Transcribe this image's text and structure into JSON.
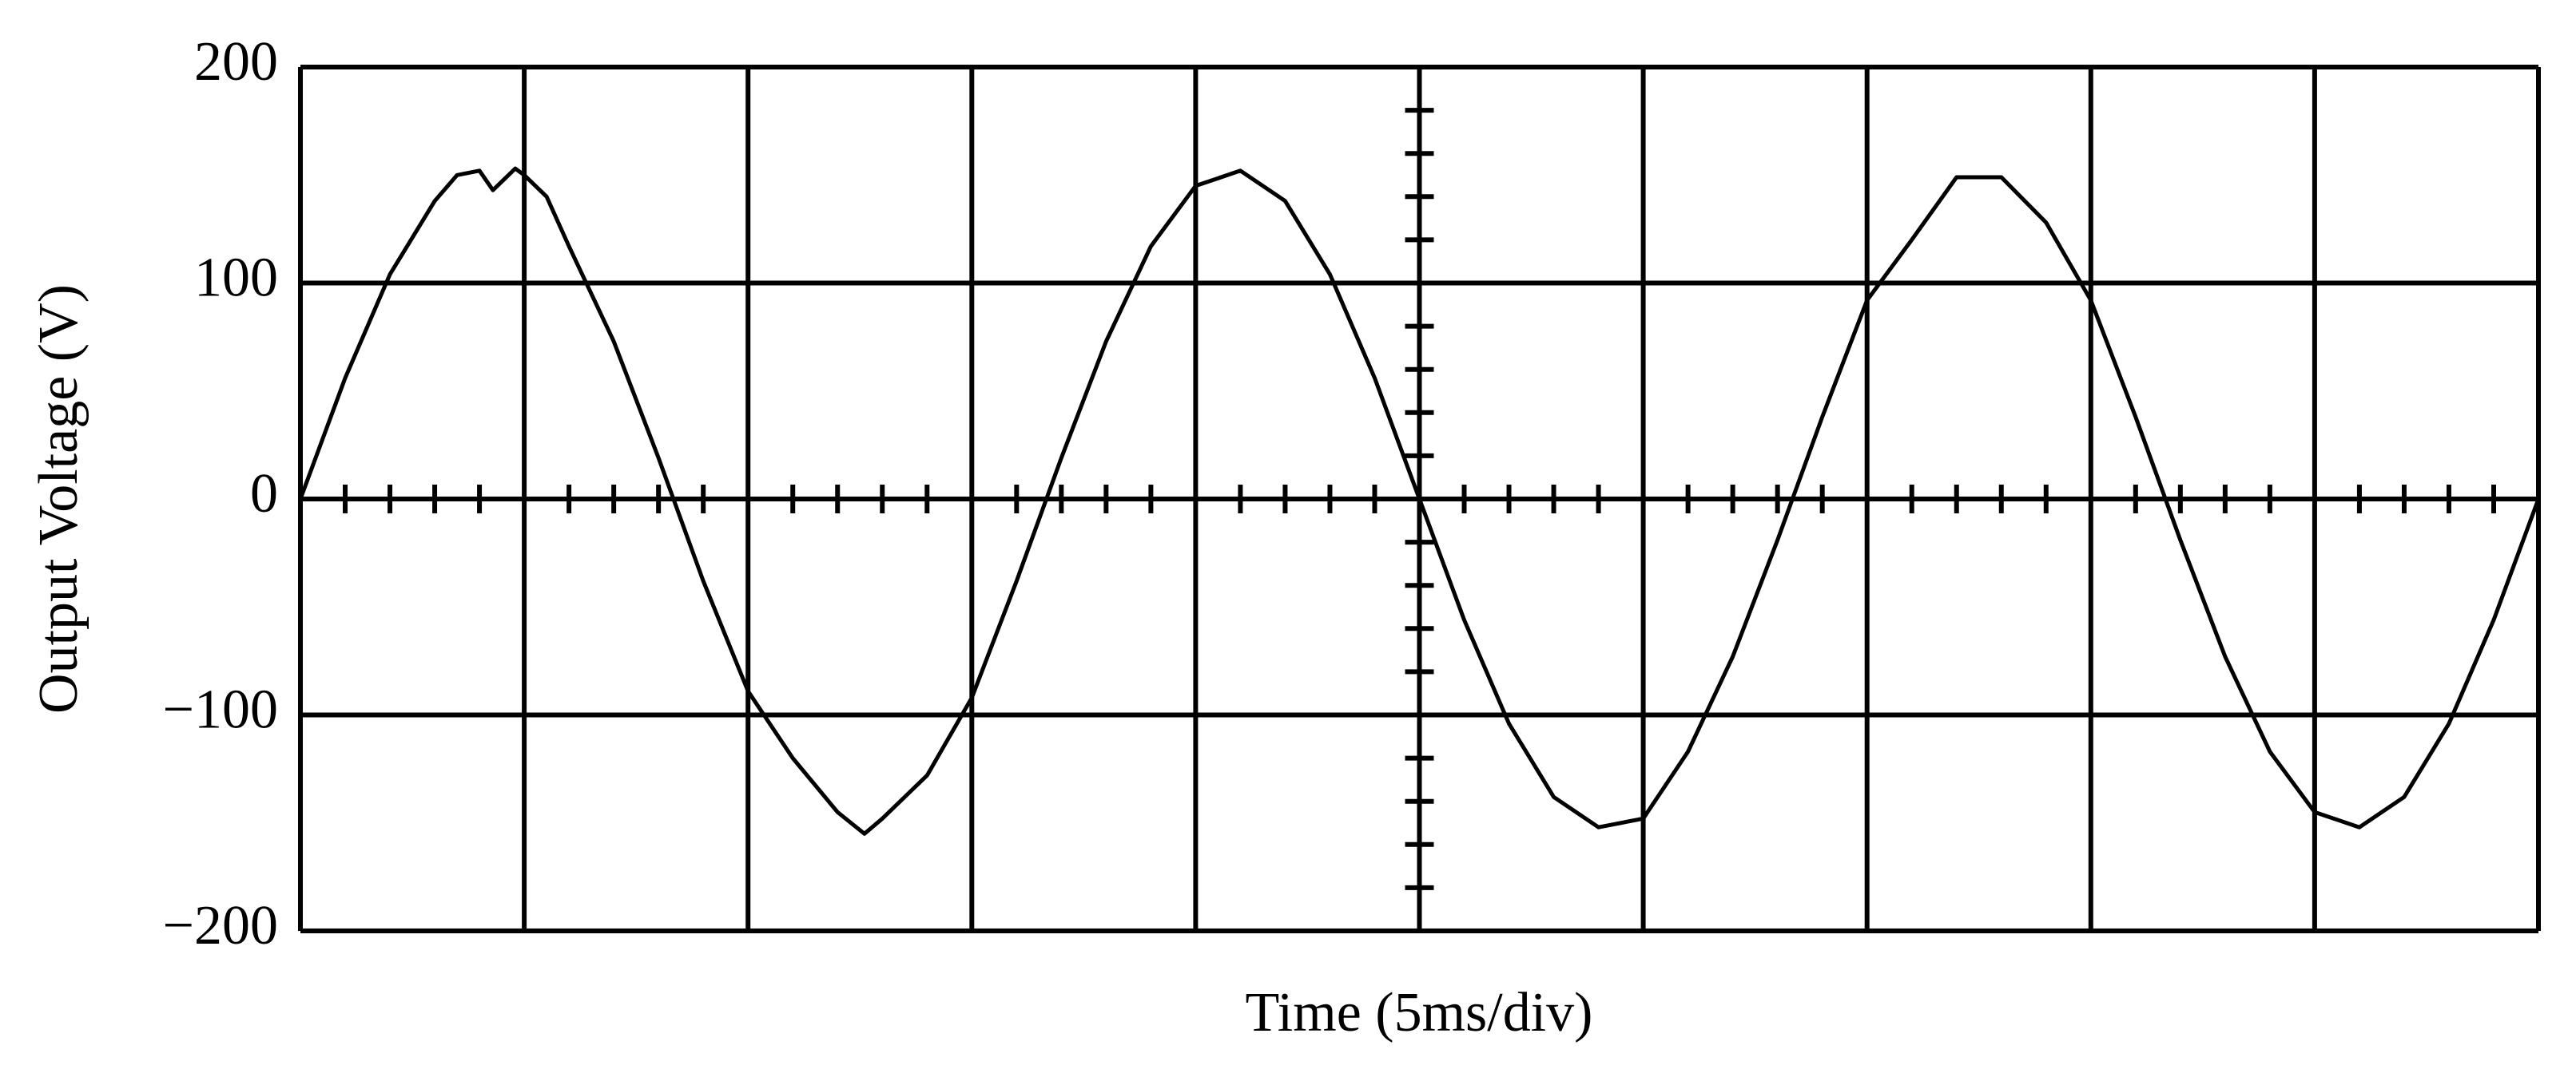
{
  "chart_data": {
    "type": "line",
    "x_label": "Time (5ms/div)",
    "y_label": "Output Voltage (V)",
    "x": [
      0,
      1,
      2,
      3,
      3.5,
      4,
      4.3,
      4.8,
      5,
      5.5,
      6,
      7,
      8,
      9,
      10,
      11,
      12,
      12.6,
      13,
      14,
      15,
      16,
      17,
      18,
      19,
      20,
      21,
      22,
      23,
      24,
      25,
      26,
      27,
      28,
      29,
      30,
      31,
      32,
      33,
      34,
      35,
      36,
      37,
      38,
      39,
      40,
      41,
      42,
      43,
      44,
      45,
      46,
      47,
      48,
      49,
      50
    ],
    "series": [
      {
        "color": "#000000",
        "values": [
          0,
          56,
          104,
          138,
          150,
          152,
          143,
          153,
          150,
          140,
          117,
          73,
          19,
          -38,
          -89,
          -120,
          -145,
          -155,
          -148,
          -128,
          -92,
          -38,
          19,
          73,
          117,
          145,
          152,
          138,
          104,
          56,
          0,
          -56,
          -104,
          -138,
          -152,
          -148,
          -117,
          -73,
          -19,
          38,
          92,
          120,
          149,
          149,
          128,
          92,
          38,
          -19,
          -73,
          -117,
          -145,
          -152,
          -138,
          -104,
          -56,
          0
        ]
      }
    ],
    "xlim": [
      0,
      50
    ],
    "xticks": [
      0,
      5,
      10,
      15,
      20,
      25,
      30,
      35,
      40,
      45,
      50
    ],
    "ylim": [
      -200,
      200
    ],
    "yticks": [
      {
        "value": -200,
        "label": "−200"
      },
      {
        "value": -100,
        "label": "−100"
      },
      0,
      100,
      200
    ],
    "grid": true
  }
}
